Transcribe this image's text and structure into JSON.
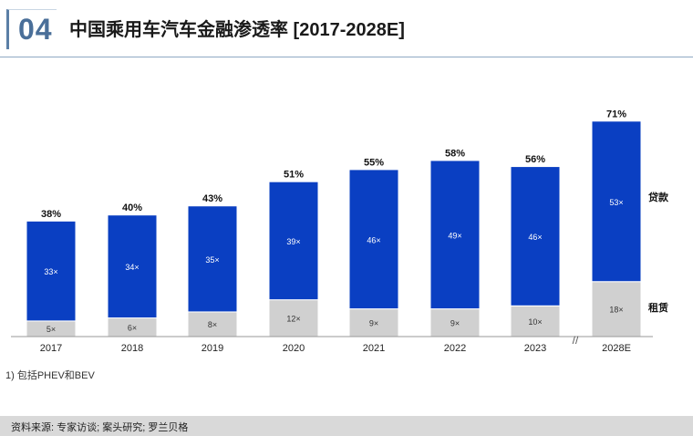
{
  "header": {
    "slide_number": "04",
    "title": "中国乘用车汽车金融渗透率 [2017-2028E]"
  },
  "chart_data": {
    "type": "bar",
    "stacked": true,
    "title": "中国乘用车汽车金融渗透率 [2017-2028E]",
    "categories": [
      "2017",
      "2018",
      "2019",
      "2020",
      "2021",
      "2022",
      "2023",
      "2028E"
    ],
    "series": [
      {
        "name": "租赁",
        "values": [
          5,
          6,
          8,
          12,
          9,
          9,
          10,
          18
        ],
        "labels": [
          "5×",
          "6×",
          "8×",
          "12×",
          "9×",
          "9×",
          "10×",
          "18×"
        ],
        "color": "#d0d0d0"
      },
      {
        "name": "贷款",
        "values": [
          33,
          34,
          35,
          39,
          46,
          49,
          46,
          53
        ],
        "labels": [
          "33×",
          "34×",
          "35×",
          "39×",
          "46×",
          "49×",
          "46×",
          "53×"
        ],
        "color": "#0a3fc2"
      }
    ],
    "totals": [
      "38%",
      "40%",
      "43%",
      "51%",
      "55%",
      "58%",
      "56%",
      "71%"
    ],
    "axis_break_label": "//",
    "ylim": [
      0,
      80
    ],
    "xlabel": "",
    "ylabel": "",
    "grid": false,
    "legend": "right, inline labels"
  },
  "footnote": "1) 包括PHEV和BEV",
  "source": "资料来源: 专家访谈; 案头研究; 罗兰贝格"
}
